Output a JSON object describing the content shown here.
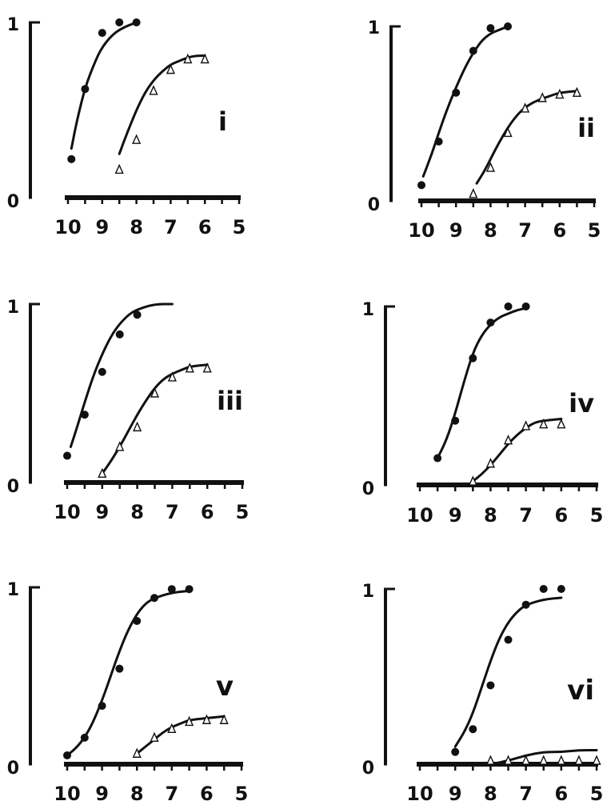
{
  "chart_data": [
    {
      "type": "scatter",
      "panel_label": "i",
      "x_ticks": [
        "10",
        "9",
        "8",
        "7",
        "6",
        "5"
      ],
      "y_ticks": [
        "0",
        "1"
      ],
      "xlim": [
        10,
        5
      ],
      "ylim": [
        0,
        1
      ],
      "series": [
        {
          "marker": "filled-circle",
          "x": [
            9.9,
            9.5,
            9.0,
            8.5,
            8.0
          ],
          "y": [
            0.22,
            0.62,
            0.94,
            1.0,
            1.0
          ],
          "curve": [
            [
              9.9,
              0.28
            ],
            [
              9.75,
              0.43
            ],
            [
              9.5,
              0.63
            ],
            [
              9.2,
              0.78
            ],
            [
              9.0,
              0.86
            ],
            [
              8.7,
              0.93
            ],
            [
              8.4,
              0.97
            ],
            [
              8.0,
              1.0
            ]
          ]
        },
        {
          "marker": "open-triangle",
          "x": [
            8.5,
            8.0,
            7.5,
            7.0,
            6.5,
            6.0
          ],
          "y": [
            0.16,
            0.33,
            0.61,
            0.73,
            0.79,
            0.79
          ],
          "curve": [
            [
              8.5,
              0.25
            ],
            [
              8.25,
              0.38
            ],
            [
              8.0,
              0.5
            ],
            [
              7.75,
              0.6
            ],
            [
              7.5,
              0.67
            ],
            [
              7.25,
              0.72
            ],
            [
              7.0,
              0.76
            ],
            [
              6.75,
              0.78
            ],
            [
              6.5,
              0.8
            ],
            [
              6.25,
              0.81
            ],
            [
              6.0,
              0.81
            ]
          ]
        }
      ]
    },
    {
      "type": "scatter",
      "panel_label": "ii",
      "x_ticks": [
        "10",
        "9",
        "8",
        "7",
        "6",
        "5"
      ],
      "y_ticks": [
        "0",
        "1"
      ],
      "xlim": [
        10,
        5
      ],
      "ylim": [
        0,
        1
      ],
      "series": [
        {
          "marker": "filled-circle",
          "x": [
            10.0,
            9.5,
            9.0,
            8.5,
            8.0,
            7.5
          ],
          "y": [
            0.09,
            0.34,
            0.62,
            0.86,
            0.99,
            1.0
          ],
          "curve": [
            [
              9.95,
              0.14
            ],
            [
              9.7,
              0.27
            ],
            [
              9.5,
              0.39
            ],
            [
              9.25,
              0.53
            ],
            [
              9.0,
              0.65
            ],
            [
              8.75,
              0.76
            ],
            [
              8.5,
              0.85
            ],
            [
              8.25,
              0.92
            ],
            [
              8.0,
              0.96
            ],
            [
              7.75,
              0.98
            ],
            [
              7.5,
              1.0
            ]
          ]
        },
        {
          "marker": "open-triangle",
          "x": [
            8.5,
            8.0,
            7.5,
            7.0,
            6.5,
            6.0,
            5.5
          ],
          "y": [
            0.04,
            0.19,
            0.39,
            0.53,
            0.59,
            0.61,
            0.62
          ],
          "curve": [
            [
              8.4,
              0.1
            ],
            [
              8.15,
              0.18
            ],
            [
              7.9,
              0.28
            ],
            [
              7.65,
              0.37
            ],
            [
              7.4,
              0.45
            ],
            [
              7.15,
              0.51
            ],
            [
              6.9,
              0.55
            ],
            [
              6.6,
              0.58
            ],
            [
              6.3,
              0.6
            ],
            [
              6.0,
              0.62
            ],
            [
              5.5,
              0.63
            ]
          ]
        }
      ]
    },
    {
      "type": "scatter",
      "panel_label": "iii",
      "x_ticks": [
        "10",
        "9",
        "8",
        "7",
        "6",
        "5"
      ],
      "y_ticks": [
        "0",
        "1"
      ],
      "xlim": [
        10,
        5
      ],
      "ylim": [
        0,
        1
      ],
      "series": [
        {
          "marker": "filled-circle",
          "x": [
            10.0,
            9.5,
            9.0,
            8.5,
            8.0
          ],
          "y": [
            0.15,
            0.38,
            0.62,
            0.83,
            0.94
          ],
          "curve": [
            [
              9.9,
              0.2
            ],
            [
              9.7,
              0.32
            ],
            [
              9.5,
              0.45
            ],
            [
              9.25,
              0.6
            ],
            [
              9.0,
              0.72
            ],
            [
              8.75,
              0.82
            ],
            [
              8.5,
              0.89
            ],
            [
              8.25,
              0.94
            ],
            [
              8.0,
              0.97
            ],
            [
              7.5,
              1.0
            ],
            [
              7.0,
              1.0
            ]
          ]
        },
        {
          "marker": "open-triangle",
          "x": [
            9.0,
            8.5,
            8.0,
            7.5,
            7.0,
            6.5,
            6.0
          ],
          "y": [
            0.05,
            0.2,
            0.31,
            0.5,
            0.59,
            0.64,
            0.64
          ],
          "curve": [
            [
              9.0,
              0.05
            ],
            [
              8.75,
              0.12
            ],
            [
              8.5,
              0.2
            ],
            [
              8.25,
              0.29
            ],
            [
              8.0,
              0.38
            ],
            [
              7.75,
              0.46
            ],
            [
              7.5,
              0.53
            ],
            [
              7.25,
              0.58
            ],
            [
              7.0,
              0.61
            ],
            [
              6.75,
              0.63
            ],
            [
              6.5,
              0.65
            ],
            [
              6.0,
              0.66
            ]
          ]
        }
      ]
    },
    {
      "type": "scatter",
      "panel_label": "iv",
      "x_ticks": [
        "10",
        "9",
        "8",
        "7",
        "6",
        "5"
      ],
      "y_ticks": [
        "0",
        "1"
      ],
      "xlim": [
        10,
        5
      ],
      "ylim": [
        0,
        1
      ],
      "series": [
        {
          "marker": "filled-circle",
          "x": [
            9.5,
            9.0,
            8.5,
            8.0,
            7.5,
            7.0
          ],
          "y": [
            0.15,
            0.36,
            0.71,
            0.91,
            1.0,
            1.0
          ],
          "curve": [
            [
              9.5,
              0.15
            ],
            [
              9.25,
              0.25
            ],
            [
              9.0,
              0.4
            ],
            [
              8.75,
              0.58
            ],
            [
              8.5,
              0.74
            ],
            [
              8.25,
              0.84
            ],
            [
              8.0,
              0.9
            ],
            [
              7.75,
              0.94
            ],
            [
              7.5,
              0.96
            ],
            [
              7.25,
              0.98
            ],
            [
              7.0,
              0.99
            ]
          ]
        },
        {
          "marker": "open-triangle",
          "x": [
            8.5,
            8.0,
            7.5,
            7.0,
            6.5,
            6.0
          ],
          "y": [
            0.02,
            0.12,
            0.25,
            0.33,
            0.34,
            0.34
          ],
          "curve": [
            [
              8.5,
              0.02
            ],
            [
              8.25,
              0.06
            ],
            [
              8.0,
              0.11
            ],
            [
              7.75,
              0.17
            ],
            [
              7.5,
              0.23
            ],
            [
              7.25,
              0.28
            ],
            [
              7.0,
              0.32
            ],
            [
              6.75,
              0.35
            ],
            [
              6.5,
              0.36
            ],
            [
              6.0,
              0.37
            ]
          ]
        }
      ]
    },
    {
      "type": "scatter",
      "panel_label": "v",
      "x_ticks": [
        "10",
        "9",
        "8",
        "7",
        "6",
        "5"
      ],
      "y_ticks": [
        "0",
        "1"
      ],
      "xlim": [
        10,
        5
      ],
      "ylim": [
        0,
        1
      ],
      "series": [
        {
          "marker": "filled-circle",
          "x": [
            10.0,
            9.5,
            9.0,
            8.5,
            8.0,
            7.5,
            7.0,
            6.5
          ],
          "y": [
            0.05,
            0.15,
            0.33,
            0.54,
            0.81,
            0.94,
            0.99,
            0.99
          ],
          "curve": [
            [
              10.0,
              0.05
            ],
            [
              9.75,
              0.09
            ],
            [
              9.5,
              0.15
            ],
            [
              9.25,
              0.24
            ],
            [
              9.0,
              0.36
            ],
            [
              8.75,
              0.5
            ],
            [
              8.5,
              0.64
            ],
            [
              8.25,
              0.76
            ],
            [
              8.0,
              0.85
            ],
            [
              7.75,
              0.91
            ],
            [
              7.5,
              0.94
            ],
            [
              7.0,
              0.97
            ],
            [
              6.5,
              0.98
            ]
          ]
        },
        {
          "marker": "open-triangle",
          "x": [
            8.0,
            7.5,
            7.0,
            6.5,
            6.0,
            5.5
          ],
          "y": [
            0.06,
            0.15,
            0.2,
            0.24,
            0.25,
            0.25
          ],
          "curve": [
            [
              8.0,
              0.06
            ],
            [
              7.75,
              0.1
            ],
            [
              7.5,
              0.14
            ],
            [
              7.25,
              0.18
            ],
            [
              7.0,
              0.21
            ],
            [
              6.75,
              0.23
            ],
            [
              6.5,
              0.25
            ],
            [
              6.0,
              0.26
            ],
            [
              5.5,
              0.27
            ]
          ]
        }
      ]
    },
    {
      "type": "scatter",
      "panel_label": "vi",
      "x_ticks": [
        "10",
        "9",
        "8",
        "7",
        "6",
        "5"
      ],
      "y_ticks": [
        "0",
        "1"
      ],
      "xlim": [
        10,
        5
      ],
      "ylim": [
        0,
        1
      ],
      "series": [
        {
          "marker": "filled-circle",
          "x": [
            9.0,
            8.5,
            8.0,
            7.5,
            7.0,
            6.5,
            6.0
          ],
          "y": [
            0.07,
            0.2,
            0.45,
            0.71,
            0.91,
            1.0,
            1.0
          ],
          "curve": [
            [
              9.0,
              0.1
            ],
            [
              8.75,
              0.18
            ],
            [
              8.5,
              0.29
            ],
            [
              8.25,
              0.44
            ],
            [
              8.0,
              0.59
            ],
            [
              7.75,
              0.72
            ],
            [
              7.5,
              0.81
            ],
            [
              7.25,
              0.87
            ],
            [
              7.0,
              0.91
            ],
            [
              6.5,
              0.94
            ],
            [
              6.0,
              0.95
            ]
          ]
        },
        {
          "marker": "open-triangle",
          "x": [
            8.0,
            7.5,
            7.0,
            6.5,
            6.0,
            5.5,
            5.0
          ],
          "y": [
            0.02,
            0.02,
            0.02,
            0.02,
            0.02,
            0.02,
            0.02
          ],
          "curve": [
            [
              8.0,
              0.0
            ],
            [
              7.5,
              0.02
            ],
            [
              7.0,
              0.05
            ],
            [
              6.5,
              0.07
            ],
            [
              6.0,
              0.07
            ],
            [
              5.5,
              0.08
            ],
            [
              5.0,
              0.08
            ]
          ]
        }
      ]
    }
  ]
}
